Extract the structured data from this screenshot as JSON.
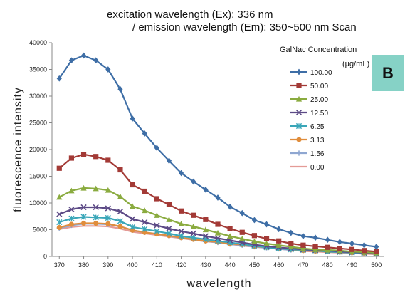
{
  "chart_data": {
    "type": "line",
    "title_line1": "excitation wavelength (Ex): 336 nm",
    "title_line2": "/ emission wavelength (Em): 350~500 nm Scan",
    "xlabel": "wavelength",
    "ylabel": "fluorescence intensity",
    "xlim": [
      367,
      503
    ],
    "ylim": [
      0,
      40000
    ],
    "x_ticks": [
      370,
      380,
      390,
      400,
      410,
      420,
      430,
      440,
      450,
      460,
      470,
      480,
      490,
      500
    ],
    "y_ticks": [
      0,
      5000,
      10000,
      15000,
      20000,
      25000,
      30000,
      35000,
      40000
    ],
    "x": [
      370,
      375,
      380,
      385,
      390,
      395,
      400,
      405,
      410,
      415,
      420,
      425,
      430,
      435,
      440,
      445,
      450,
      455,
      460,
      465,
      470,
      475,
      480,
      485,
      490,
      495,
      500
    ],
    "legend_title_line1": "GalNac Concentration",
    "legend_title_line2": "(μg/mL)",
    "panel_label": "B",
    "grid": false,
    "series": [
      {
        "name": "100.00",
        "color": "#3e6ea6",
        "marker": "diamond",
        "values": [
          33300,
          36700,
          37600,
          36700,
          35000,
          31300,
          25800,
          23000,
          20300,
          17900,
          15600,
          14000,
          12500,
          11000,
          9300,
          8100,
          6800,
          6000,
          5100,
          4400,
          3800,
          3500,
          3100,
          2700,
          2400,
          2100,
          1800
        ]
      },
      {
        "name": "50.00",
        "color": "#a33a36",
        "marker": "square",
        "values": [
          16500,
          18400,
          19100,
          18700,
          18000,
          16200,
          13400,
          12200,
          10800,
          9700,
          8500,
          7700,
          6900,
          6000,
          5200,
          4500,
          3900,
          3300,
          2900,
          2400,
          2100,
          1900,
          1700,
          1500,
          1300,
          1100,
          900
        ]
      },
      {
        "name": "25.00",
        "color": "#8aab3f",
        "marker": "triangle",
        "values": [
          11100,
          12300,
          12800,
          12700,
          12400,
          11200,
          9400,
          8600,
          7700,
          6900,
          6100,
          5600,
          5000,
          4400,
          3800,
          3300,
          2800,
          2400,
          2100,
          1800,
          1500,
          1300,
          1200,
          1100,
          900,
          800,
          700
        ]
      },
      {
        "name": "12.50",
        "color": "#5c4a86",
        "marker": "x",
        "values": [
          7900,
          8800,
          9200,
          9200,
          9000,
          8400,
          7000,
          6400,
          5800,
          5200,
          4700,
          4300,
          3800,
          3400,
          3000,
          2600,
          2200,
          1900,
          1700,
          1500,
          1300,
          1200,
          1100,
          900,
          800,
          700,
          600
        ]
      },
      {
        "name": "6.25",
        "color": "#3aa6b8",
        "marker": "star",
        "values": [
          6400,
          7100,
          7400,
          7300,
          7200,
          6600,
          5500,
          5100,
          4700,
          4300,
          3800,
          3500,
          3200,
          2900,
          2600,
          2300,
          2000,
          1700,
          1500,
          1300,
          1200,
          1100,
          900,
          800,
          700,
          600,
          500
        ]
      },
      {
        "name": "3.13",
        "color": "#e08d3c",
        "marker": "circle",
        "values": [
          5400,
          6000,
          6200,
          6200,
          6100,
          5600,
          4900,
          4500,
          4200,
          3900,
          3500,
          3200,
          2900,
          2700,
          2400,
          2200,
          1900,
          1700,
          1500,
          1300,
          1100,
          1000,
          900,
          800,
          700,
          600,
          500
        ]
      },
      {
        "name": "1.56",
        "color": "#8fa7d1",
        "marker": "plus",
        "values": [
          5300,
          5800,
          6100,
          6100,
          6000,
          5600,
          4900,
          4500,
          4200,
          3800,
          3500,
          3200,
          2900,
          2600,
          2300,
          2100,
          1800,
          1600,
          1400,
          1200,
          1100,
          1000,
          900,
          800,
          700,
          600,
          500
        ]
      },
      {
        "name": "0.00",
        "color": "#e49b96",
        "marker": "none",
        "values": [
          5100,
          5500,
          5700,
          5700,
          5600,
          5200,
          4600,
          4300,
          4000,
          3700,
          3400,
          3100,
          2800,
          2600,
          2300,
          2000,
          1800,
          1600,
          1400,
          1200,
          1000,
          900,
          800,
          700,
          600,
          500,
          400
        ]
      }
    ]
  }
}
